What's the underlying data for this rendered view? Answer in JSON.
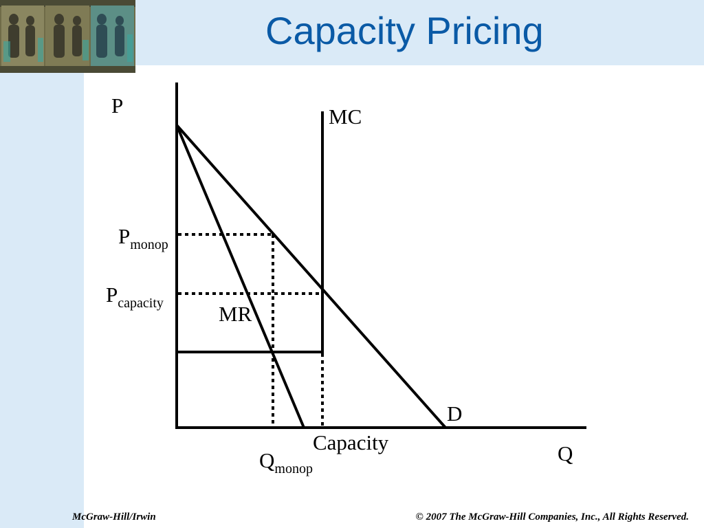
{
  "slide": {
    "title": "Capacity Pricing",
    "footer_left": "McGraw-Hill/Irwin",
    "footer_right": "© 2007 The McGraw-Hill Companies, Inc., All Rights Reserved."
  },
  "diagram": {
    "y_axis_label": "P",
    "x_axis_label": "Q",
    "mc_label": "MC",
    "mr_label": "MR",
    "demand_label": "D",
    "capacity_label": "Capacity",
    "p_monop_main": "P",
    "p_monop_sub": "monop",
    "p_capacity_main": "P",
    "p_capacity_sub": "capacity",
    "q_monop_main": "Q",
    "q_monop_sub": "monop"
  },
  "colors": {
    "title": "#0a5aa6",
    "background_panel": "#daeaf7",
    "lines": "#000000"
  }
}
